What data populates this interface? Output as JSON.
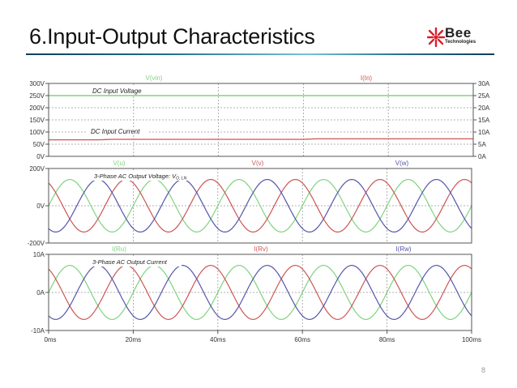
{
  "slide": {
    "title": "6.Input-Output Characteristics",
    "page_number": "8",
    "logo": {
      "name": "Bee",
      "subtitle": "Technologies",
      "color": "#d9202a"
    }
  },
  "colors": {
    "green": "#7fd37f",
    "red": "#cc5555",
    "blue": "#5555aa",
    "grid": "#999999",
    "axis": "#444444",
    "text": "#333333"
  },
  "chart_data": [
    {
      "type": "line",
      "title": "DC Input Voltage / DC Input Current",
      "x": {
        "min": 0,
        "max": 100,
        "unit": "ms",
        "ticks": [
          "0ms",
          "20ms",
          "40ms",
          "60ms",
          "80ms",
          "100ms"
        ]
      },
      "y_left": {
        "min": 0,
        "max": 300,
        "ticks": [
          "0V",
          "50V",
          "100V",
          "150V",
          "200V",
          "250V",
          "300V"
        ]
      },
      "y_right": {
        "min": 0,
        "max": 30,
        "ticks": [
          "0A",
          "5A",
          "10A",
          "15A",
          "20A",
          "25A",
          "30A"
        ]
      },
      "grid": true,
      "legend": [
        "V(vin)",
        "I(In)"
      ],
      "annotations": [
        "DC Input Voltage",
        "DC Input Current"
      ],
      "series": [
        {
          "name": "V(vin)",
          "color": "#7fd37f",
          "axis": "left",
          "value": 250
        },
        {
          "name": "I(In)",
          "color": "#cc5555",
          "axis": "right",
          "value_start": 6.8,
          "value_end": 7.2
        }
      ]
    },
    {
      "type": "line",
      "title": "3-Phase AC Output Voltage: V_O,LN",
      "x": {
        "min": 0,
        "max": 100,
        "unit": "ms"
      },
      "y": {
        "min": -200,
        "max": 200,
        "ticks": [
          "200V",
          "0V",
          "-200V"
        ]
      },
      "grid": true,
      "legend": [
        "V(u)",
        "V(v)",
        "V(w)"
      ],
      "annotation": "3-Phase AC Output Voltage: V",
      "annotation_sub": "O, LN",
      "series": [
        {
          "name": "V(u)",
          "color": "#7fd37f",
          "amplitude": 141,
          "period_ms": 20,
          "phase_deg": 0
        },
        {
          "name": "V(v)",
          "color": "#cc5555",
          "amplitude": 141,
          "period_ms": 20,
          "phase_deg": 120
        },
        {
          "name": "V(w)",
          "color": "#5555aa",
          "amplitude": 141,
          "period_ms": 20,
          "phase_deg": -120
        }
      ]
    },
    {
      "type": "line",
      "title": "3-Phase AC Output Current",
      "x": {
        "min": 0,
        "max": 100,
        "unit": "ms",
        "ticks": [
          "0ms",
          "20ms",
          "40ms",
          "60ms",
          "80ms",
          "100ms"
        ]
      },
      "y": {
        "min": -10,
        "max": 10,
        "ticks": [
          "10A",
          "0A",
          "-10A"
        ]
      },
      "grid": true,
      "legend": [
        "I(Ru)",
        "I(Rv)",
        "I(Rw)"
      ],
      "annotation": "3-Phase AC Output Current",
      "series": [
        {
          "name": "I(Ru)",
          "color": "#7fd37f",
          "amplitude": 7.1,
          "period_ms": 20,
          "phase_deg": 0
        },
        {
          "name": "I(Rv)",
          "color": "#cc5555",
          "amplitude": 7.1,
          "period_ms": 20,
          "phase_deg": 120
        },
        {
          "name": "I(Rw)",
          "color": "#5555aa",
          "amplitude": 7.1,
          "period_ms": 20,
          "phase_deg": -120
        }
      ]
    }
  ]
}
